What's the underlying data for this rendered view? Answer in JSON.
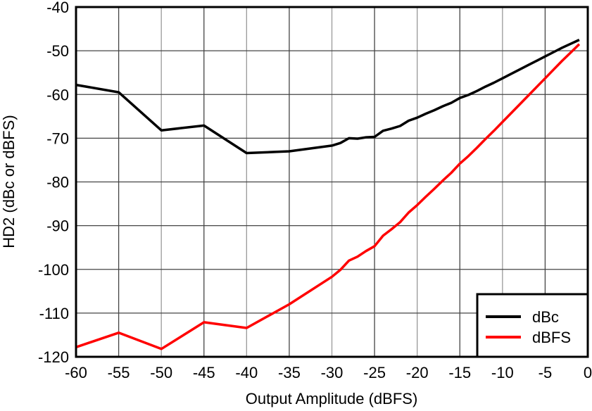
{
  "chart_data": {
    "type": "line",
    "title": "",
    "xlabel": "Output Amplitude (dBFS)",
    "ylabel": "HD2 (dBc or dBFS)",
    "xlim": [
      -60,
      0
    ],
    "ylim": [
      -120,
      -40
    ],
    "xticks": [
      -60,
      -55,
      -50,
      -45,
      -40,
      -35,
      -30,
      -25,
      -20,
      -15,
      -10,
      -5,
      0
    ],
    "yticks": [
      -40,
      -50,
      -60,
      -70,
      -80,
      -90,
      -100,
      -110,
      -120
    ],
    "grid": true,
    "legend_position": "bottom-right",
    "x": [
      -60,
      -55,
      -50,
      -45,
      -40,
      -35,
      -30,
      -29,
      -28,
      -27,
      -26,
      -25,
      -24,
      -23,
      -22,
      -21,
      -20,
      -19,
      -18,
      -17,
      -16,
      -15,
      -14,
      -13,
      -12,
      -11,
      -10,
      -9,
      -8,
      -7,
      -6,
      -5,
      -4,
      -3,
      -2,
      -1
    ],
    "series": [
      {
        "name": "dBc",
        "color": "#000000",
        "values": [
          -57.8,
          -59.5,
          -68.2,
          -67.1,
          -73.4,
          -73.0,
          -71.7,
          -71.1,
          -70.0,
          -70.1,
          -69.8,
          -69.7,
          -68.3,
          -67.8,
          -67.2,
          -66.0,
          -65.3,
          -64.4,
          -63.6,
          -62.7,
          -61.9,
          -60.8,
          -60.1,
          -59.2,
          -58.2,
          -57.3,
          -56.3,
          -55.3,
          -54.3,
          -53.3,
          -52.3,
          -51.3,
          -50.3,
          -49.3,
          -48.4,
          -47.5
        ]
      },
      {
        "name": "dBFS",
        "color": "#ff0000",
        "values": [
          -117.8,
          -114.5,
          -118.2,
          -112.1,
          -113.4,
          -108.0,
          -101.7,
          -100.1,
          -98.0,
          -97.1,
          -95.8,
          -94.7,
          -92.3,
          -90.8,
          -89.2,
          -87.0,
          -85.3,
          -83.4,
          -81.6,
          -79.7,
          -77.9,
          -75.8,
          -74.1,
          -72.2,
          -70.2,
          -68.3,
          -66.3,
          -64.3,
          -62.3,
          -60.3,
          -58.3,
          -56.3,
          -54.3,
          -52.3,
          -50.4,
          -48.5
        ]
      }
    ]
  }
}
